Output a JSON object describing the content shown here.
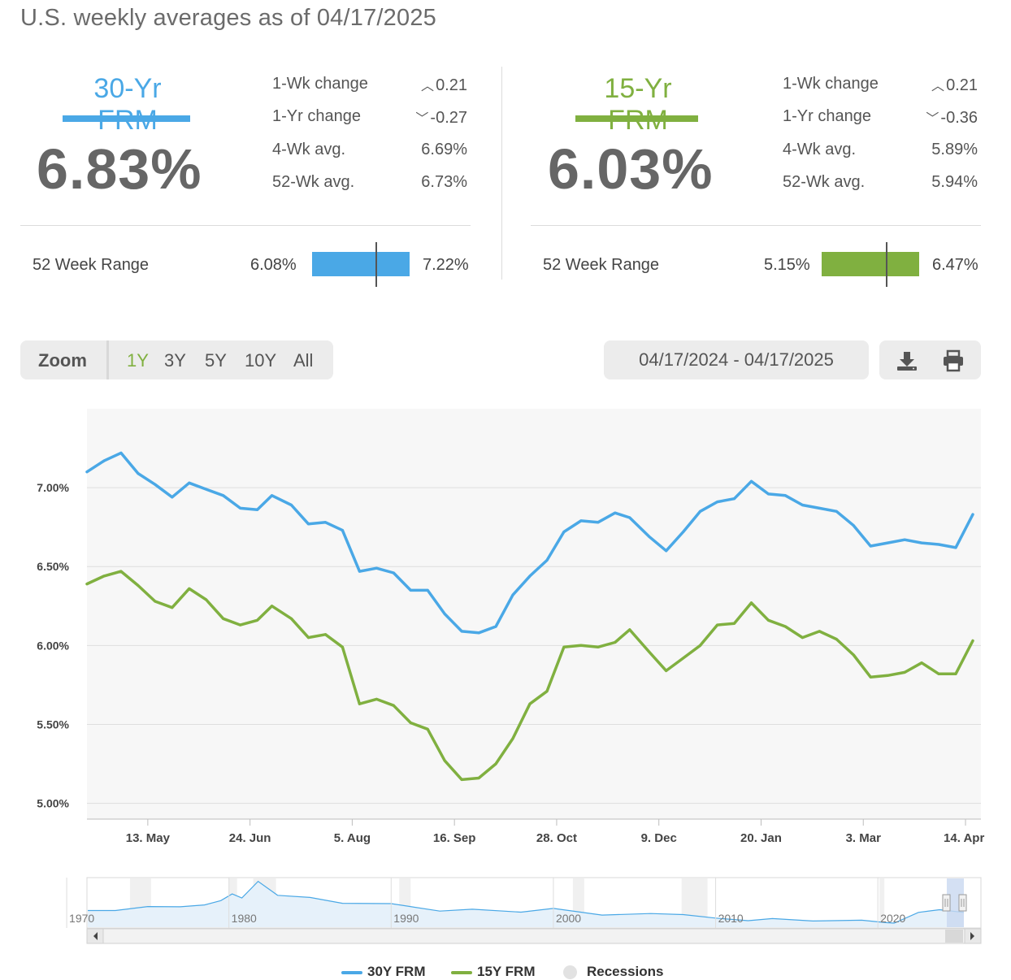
{
  "header": {
    "title": "U.S. weekly averages as of 04/17/2025"
  },
  "panels": [
    {
      "name": "30-Yr FRM",
      "color": "#4aa8e6",
      "rate": "6.83%",
      "stats": [
        {
          "label": "1-Wk change",
          "value": "0.21",
          "arrow": "up"
        },
        {
          "label": "1-Yr change",
          "value": "-0.27",
          "arrow": "down"
        },
        {
          "label": "4-Wk avg.",
          "value": "6.69%"
        },
        {
          "label": "52-Wk avg.",
          "value": "6.73%"
        }
      ],
      "range_label": "52 Week Range",
      "range_low": "6.08%",
      "range_high": "7.22%",
      "range_low_num": 6.08,
      "range_high_num": 7.22,
      "current_num": 6.83
    },
    {
      "name": "15-Yr FRM",
      "color": "#80b040",
      "rate": "6.03%",
      "stats": [
        {
          "label": "1-Wk change",
          "value": "0.21",
          "arrow": "up"
        },
        {
          "label": "1-Yr change",
          "value": "-0.36",
          "arrow": "down"
        },
        {
          "label": "4-Wk avg.",
          "value": "5.89%"
        },
        {
          "label": "52-Wk avg.",
          "value": "5.94%"
        }
      ],
      "range_label": "52 Week Range",
      "range_low": "5.15%",
      "range_high": "6.47%",
      "range_low_num": 5.15,
      "range_high_num": 6.47,
      "current_num": 6.03
    }
  ],
  "toolbar": {
    "zoom_label": "Zoom",
    "zoom_options": [
      "1Y",
      "3Y",
      "5Y",
      "10Y",
      "All"
    ],
    "zoom_selected": "1Y",
    "date_range": "04/17/2024 - 04/17/2025",
    "download_icon": "download-icon",
    "print_icon": "print-icon"
  },
  "chart_data": {
    "type": "line",
    "title": "",
    "xlabel": "",
    "ylabel": "",
    "ylim": [
      4.9,
      7.5
    ],
    "xlim": [
      "2024-04-18",
      "2025-04-17"
    ],
    "yticks": [
      "5.00%",
      "5.50%",
      "6.00%",
      "6.50%",
      "7.00%"
    ],
    "ytick_values": [
      5.0,
      5.5,
      6.0,
      6.5,
      7.0
    ],
    "xticks": [
      "13. May",
      "24. Jun",
      "5. Aug",
      "16. Sep",
      "28. Oct",
      "9. Dec",
      "20. Jan",
      "3. Mar",
      "14. Apr"
    ],
    "xtick_dates": [
      "2024-05-13",
      "2024-06-24",
      "2024-08-05",
      "2024-09-16",
      "2024-10-28",
      "2024-12-09",
      "2025-01-20",
      "2025-03-03",
      "2025-04-14"
    ],
    "grid": true,
    "dates": [
      "2024-04-18",
      "2024-04-25",
      "2024-05-02",
      "2024-05-09",
      "2024-05-16",
      "2024-05-23",
      "2024-05-30",
      "2024-06-06",
      "2024-06-13",
      "2024-06-20",
      "2024-06-27",
      "2024-07-03",
      "2024-07-11",
      "2024-07-18",
      "2024-07-25",
      "2024-08-01",
      "2024-08-08",
      "2024-08-15",
      "2024-08-22",
      "2024-08-29",
      "2024-09-05",
      "2024-09-12",
      "2024-09-19",
      "2024-09-26",
      "2024-10-03",
      "2024-10-10",
      "2024-10-17",
      "2024-10-24",
      "2024-10-31",
      "2024-11-07",
      "2024-11-14",
      "2024-11-21",
      "2024-11-27",
      "2024-12-05",
      "2024-12-12",
      "2024-12-19",
      "2024-12-26",
      "2025-01-02",
      "2025-01-09",
      "2025-01-16",
      "2025-01-23",
      "2025-01-30",
      "2025-02-06",
      "2025-02-13",
      "2025-02-20",
      "2025-02-27",
      "2025-03-06",
      "2025-03-13",
      "2025-03-20",
      "2025-03-27",
      "2025-04-03",
      "2025-04-10",
      "2025-04-17"
    ],
    "series": [
      {
        "name": "30Y FRM",
        "color": "#4aa8e6",
        "values": [
          7.1,
          7.17,
          7.22,
          7.09,
          7.02,
          6.94,
          7.03,
          6.99,
          6.95,
          6.87,
          6.86,
          6.95,
          6.89,
          6.77,
          6.78,
          6.73,
          6.47,
          6.49,
          6.46,
          6.35,
          6.35,
          6.2,
          6.09,
          6.08,
          6.12,
          6.32,
          6.44,
          6.54,
          6.72,
          6.79,
          6.78,
          6.84,
          6.81,
          6.69,
          6.6,
          6.72,
          6.85,
          6.91,
          6.93,
          7.04,
          6.96,
          6.95,
          6.89,
          6.87,
          6.85,
          6.76,
          6.63,
          6.65,
          6.67,
          6.65,
          6.64,
          6.62,
          6.83
        ]
      },
      {
        "name": "15Y FRM",
        "color": "#80b040",
        "values": [
          6.39,
          6.44,
          6.47,
          6.38,
          6.28,
          6.24,
          6.36,
          6.29,
          6.17,
          6.13,
          6.16,
          6.25,
          6.17,
          6.05,
          6.07,
          5.99,
          5.63,
          5.66,
          5.62,
          5.51,
          5.47,
          5.27,
          5.15,
          5.16,
          5.25,
          5.41,
          5.63,
          5.71,
          5.99,
          6.0,
          5.99,
          6.02,
          6.1,
          5.96,
          5.84,
          5.92,
          6.0,
          6.13,
          6.14,
          6.27,
          6.16,
          6.12,
          6.05,
          6.09,
          6.04,
          5.94,
          5.8,
          5.81,
          5.83,
          5.89,
          5.82,
          5.82,
          6.03
        ]
      }
    ],
    "navigator": {
      "years": [
        "1970",
        "1980",
        "1990",
        "2000",
        "2010",
        "2020"
      ],
      "year_values": [
        1970,
        1980,
        1990,
        2000,
        2010,
        2020
      ],
      "xlim": [
        1971.3,
        2025.4
      ],
      "series": [
        {
          "name": "30Y FRM",
          "x": [
            1971.3,
            1973,
            1975,
            1977,
            1978.5,
            1979.5,
            1980.2,
            1980.8,
            1981.8,
            1983,
            1985,
            1987,
            1990,
            1993,
            1995,
            1998,
            2000,
            2003,
            2006,
            2008,
            2010,
            2012,
            2013.5,
            2016,
            2019,
            2020.5,
            2021,
            2022.5,
            2023.8,
            2025.3
          ],
          "y": [
            7.5,
            7.5,
            9.0,
            8.9,
            9.6,
            11.2,
            13.7,
            12.2,
            18.4,
            13.2,
            12.4,
            10.2,
            10.1,
            7.3,
            8.0,
            6.9,
            8.3,
            5.8,
            6.4,
            6.0,
            4.7,
            3.7,
            4.5,
            3.6,
            3.9,
            3.0,
            2.8,
            6.8,
            7.8,
            6.8
          ]
        }
      ],
      "recessions": [
        [
          1973.9,
          1975.2
        ],
        [
          1980.0,
          1980.5
        ],
        [
          1981.5,
          1982.9
        ],
        [
          1990.5,
          1991.2
        ],
        [
          2001.2,
          2001.9
        ],
        [
          2007.9,
          2009.5
        ],
        [
          2020.1,
          2020.4
        ]
      ]
    }
  },
  "legend": [
    {
      "label": "30Y FRM",
      "color": "#4aa8e6",
      "kind": "line"
    },
    {
      "label": "15Y FRM",
      "color": "#80b040",
      "kind": "line"
    },
    {
      "label": "Recessions",
      "color": "#e2e2e2",
      "kind": "dot"
    }
  ]
}
